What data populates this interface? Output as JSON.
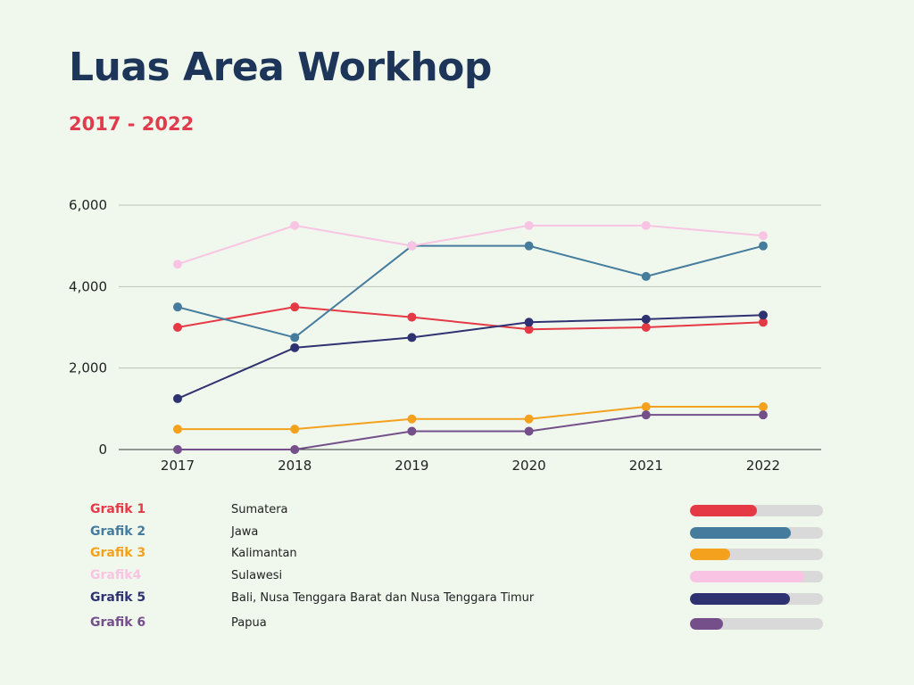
{
  "title": "Luas Area Workhop",
  "subtitle": "2017 - 2022",
  "chart_data": {
    "type": "line",
    "x": [
      "2017",
      "2018",
      "2019",
      "2020",
      "2021",
      "2022"
    ],
    "ylim": [
      0,
      6000
    ],
    "yticks": [
      "0",
      "2,000",
      "4,000",
      "6,000"
    ],
    "ytick_values": [
      0,
      2000,
      4000,
      6000
    ],
    "grid": true,
    "series": [
      {
        "name": "Sumatera",
        "color": "#e63946",
        "values": [
          3000,
          3500,
          3250,
          2950,
          3000,
          3125
        ]
      },
      {
        "name": "Jawa",
        "color": "#457b9d",
        "values": [
          3500,
          2750,
          5000,
          5000,
          4250,
          5000
        ]
      },
      {
        "name": "Kalimantan",
        "color": "#f4a11d",
        "values": [
          500,
          500,
          750,
          750,
          1050,
          1050
        ]
      },
      {
        "name": "Sulawesi",
        "color": "#f9c4e3",
        "values": [
          4550,
          5500,
          5000,
          5500,
          5500,
          5250
        ]
      },
      {
        "name": "Bali, Nusa Tenggara Barat dan Nusa Tenggara Timur",
        "color": "#2f3270",
        "values": [
          1250,
          2500,
          2750,
          3125,
          3200,
          3300
        ]
      },
      {
        "name": "Papua",
        "color": "#744f8a",
        "values": [
          0,
          0,
          450,
          450,
          850,
          850
        ]
      }
    ]
  },
  "legend": [
    {
      "label": "Grafik 1",
      "region": "Sumatera",
      "color": "#e63946",
      "fill": 0.5
    },
    {
      "label": "Grafik 2",
      "region": "Jawa",
      "color": "#457b9d",
      "fill": 0.76
    },
    {
      "label": "Grafik 3",
      "region": "Kalimantan",
      "color": "#f4a11d",
      "fill": 0.3
    },
    {
      "label": "Grafik4",
      "region": "Sulawesi",
      "color": "#f9c4e3",
      "fill": 0.86
    },
    {
      "label": "Grafik 5",
      "region": "Bali, Nusa Tenggara Barat dan Nusa Tenggara Timur",
      "color": "#2f3270",
      "fill": 0.75
    },
    {
      "label": "Grafik 6",
      "region": "Papua",
      "color": "#744f8a",
      "fill": 0.25
    }
  ]
}
